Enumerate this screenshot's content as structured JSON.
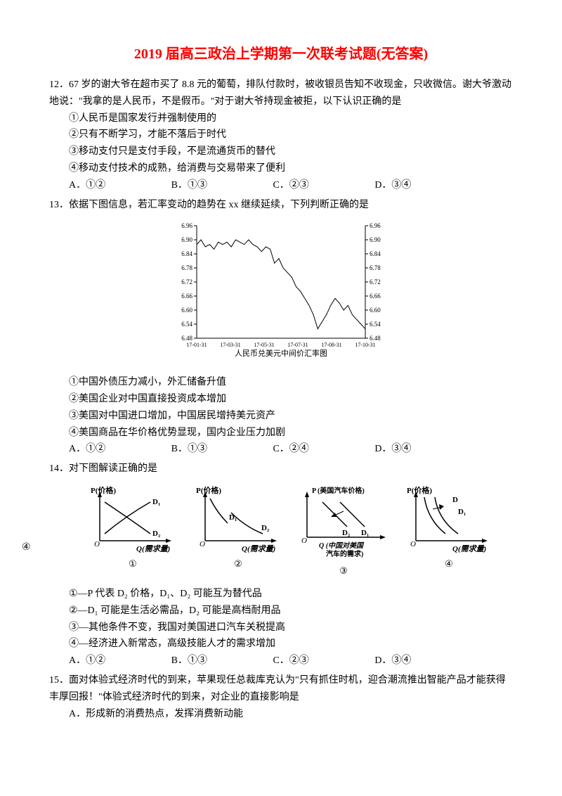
{
  "title": "2019 届高三政治上学期第一次联考试题(无答案)",
  "margin_note": "④",
  "q12": {
    "num": "12．",
    "text": "67 岁的谢大爷在超市买了 8.8 元的葡萄，排队付款时，被收银员告知不收现金，只收微信。谢大爷激动地说：\"我拿的是人民币，不是假币。\"对于谢大爷持现金被拒，以下认识正确的是",
    "s1": "①人民币是国家发行并强制使用的",
    "s2": "②只有不断学习，才能不落后于时代",
    "s3": "③移动支付只是支付手段，不是流通货币的替代",
    "s4": "④移动支付技术的成熟，给消费与交易带来了便利",
    "optA": "A．①②",
    "optB": "B．①③",
    "optC": "C．②③",
    "optD": "D．③④"
  },
  "q13": {
    "num": "13．",
    "text": "依据下图信息，若汇率变动的趋势在 xx 继续延续，下列判断正确的是",
    "s1": "①中国外债压力减小，外汇储备升值",
    "s2": "②美国企业对中国直接投资成本增加",
    "s3": "③美国对中国进口增加，中国居民增持美元资产",
    "s4": "④美国商品在华价格优势显现，国内企业压力加剧",
    "optA": "A．①②",
    "optB": "B．①③",
    "optC": "C．②④",
    "optD": "D．③④",
    "chart": {
      "title": "人民币兑美元中间价汇率图",
      "y_left": [
        "6.96",
        "6.90",
        "6.84",
        "6.78",
        "6.72",
        "6.66",
        "6.60",
        "6.54",
        "6.48"
      ],
      "y_right": [
        "6.96",
        "6.90",
        "6.84",
        "6.78",
        "6.72",
        "6.66",
        "6.60",
        "6.54",
        "6.48"
      ],
      "x_labels": [
        "17-01-31",
        "17-03-31",
        "17-05-31",
        "17-07-31",
        "17-08-31",
        "17-10-31"
      ],
      "ylim": [
        6.48,
        6.96
      ],
      "data": [
        6.88,
        6.9,
        6.87,
        6.88,
        6.86,
        6.89,
        6.88,
        6.89,
        6.87,
        6.9,
        6.89,
        6.88,
        6.9,
        6.88,
        6.87,
        6.85,
        6.87,
        6.86,
        6.8,
        6.82,
        6.78,
        6.76,
        6.74,
        6.7,
        6.68,
        6.65,
        6.62,
        6.58,
        6.52,
        6.55,
        6.58,
        6.62,
        6.65,
        6.63,
        6.6,
        6.62,
        6.58,
        6.56,
        6.54,
        6.52
      ],
      "line_color": "#000000",
      "background": "#ffffff",
      "font_size": 10
    }
  },
  "q14": {
    "num": "14．",
    "text": "对下图解读正确的是",
    "s1": "①—P 代表 D₂ 价格，D₁、D₂ 可能互为替代品",
    "s2": "②—D₁ 可能是生活必需品，D₂ 可能是高档耐用品",
    "s3": "③—其他条件不变，我国对美国进口汽车关税提高",
    "s4": "④—经济进入新常态，高级技能人才的需求增加",
    "optA": "A．①②",
    "optB": "B．①③",
    "optC": "C．②③",
    "optD": "D．③④",
    "diagrams": {
      "d1": {
        "label": "①",
        "ylabel": "P(价格)",
        "xlabel": "Q(需求量)",
        "curves": [
          "D₁",
          "D₂"
        ]
      },
      "d2": {
        "label": "②",
        "ylabel": "P(价格)",
        "xlabel": "Q(需求量)",
        "curves": [
          "D₁",
          "D₂"
        ]
      },
      "d3": {
        "label": "③",
        "ylabel": "P (美国汽车价格)",
        "xlabel": "Q (中国对美国汽车的需求)",
        "curves": [
          "D₂",
          "D₁"
        ]
      },
      "d4": {
        "label": "④",
        "ylabel": "P(价格)",
        "xlabel": "Q(需求量)",
        "curves": [
          "D",
          "D₁"
        ]
      }
    }
  },
  "q15": {
    "num": "15．",
    "text": "面对体验式经济时代的到来，苹果现任总裁库克认为\"只有抓住时机，迎合潮流推出智能产品才能获得丰厚回报！\"体验式经济时代的到来，对企业的直接影响是",
    "optA": "A．形成新的消费热点，发挥消费新动能"
  }
}
